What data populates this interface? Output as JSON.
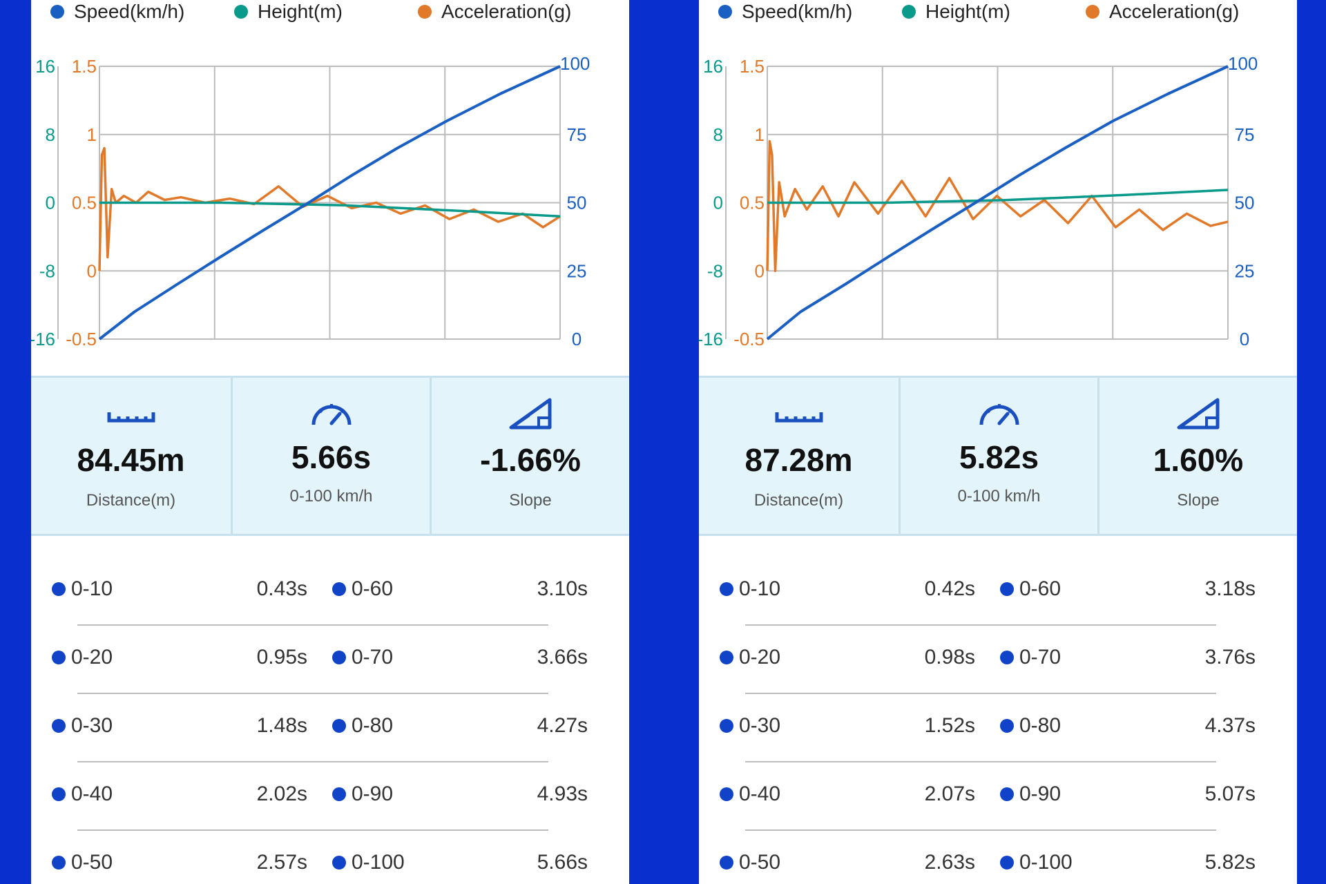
{
  "legend": {
    "speed": "Speed(km/h)",
    "height": "Height(m)",
    "accel": "Acceleration(g)"
  },
  "colors": {
    "speed": "#1a5fc2",
    "height": "#0a9a8b",
    "accel": "#e07a2a",
    "grid": "#bcbcbc",
    "background_frame": "#0a2fcf"
  },
  "icons": [
    "ruler-icon",
    "speedometer-icon",
    "slope-icon"
  ],
  "panels": [
    {
      "stats": {
        "distance": {
          "value": "84.45m",
          "label": "Distance(m)"
        },
        "time": {
          "value": "5.66s",
          "label": "0-100 km/h"
        },
        "slope": {
          "value": "-1.66%",
          "label": "Slope"
        }
      },
      "splits": [
        {
          "range": "0-10",
          "time": "0.43s"
        },
        {
          "range": "0-20",
          "time": "0.95s"
        },
        {
          "range": "0-30",
          "time": "1.48s"
        },
        {
          "range": "0-40",
          "time": "2.02s"
        },
        {
          "range": "0-50",
          "time": "2.57s"
        },
        {
          "range": "0-60",
          "time": "3.10s"
        },
        {
          "range": "0-70",
          "time": "3.66s"
        },
        {
          "range": "0-80",
          "time": "4.27s"
        },
        {
          "range": "0-90",
          "time": "4.93s"
        },
        {
          "range": "0-100",
          "time": "5.66s"
        }
      ],
      "chart_data": {
        "type": "line",
        "title": "",
        "xlabel": "",
        "ylabel": "",
        "grid": true,
        "legend_position": "top",
        "axes": {
          "height": {
            "ticks": [
              "16",
              "8",
              "0",
              "-8",
              "-16"
            ],
            "range": [
              -16,
              16
            ]
          },
          "accel": {
            "ticks": [
              "1.5",
              "1",
              "0.5",
              "0",
              "-0.5"
            ],
            "range": [
              -0.5,
              1.5
            ]
          },
          "speed": {
            "ticks": [
              "100",
              "75",
              "50",
              "25",
              "0"
            ],
            "range": [
              0,
              100
            ]
          }
        },
        "x_range": [
          0,
          5.66
        ],
        "series": [
          {
            "name": "Speed(km/h)",
            "axis": "speed",
            "x": [
              0,
              0.43,
              0.95,
              1.48,
              2.02,
              2.57,
              3.1,
              3.66,
              4.27,
              4.93,
              5.66
            ],
            "values": [
              0,
              10,
              20,
              30,
              40,
              50,
              60,
              70,
              80,
              90,
              100
            ]
          },
          {
            "name": "Height(m)",
            "axis": "height",
            "x": [
              0,
              1.5,
              3.0,
              4.5,
              5.66
            ],
            "values": [
              0,
              0,
              -0.3,
              -1.0,
              -1.6
            ]
          },
          {
            "name": "Acceleration(g)",
            "axis": "accel",
            "x": [
              0,
              0.03,
              0.06,
              0.1,
              0.15,
              0.2,
              0.3,
              0.45,
              0.6,
              0.8,
              1.0,
              1.3,
              1.6,
              1.9,
              2.2,
              2.5,
              2.8,
              3.1,
              3.4,
              3.7,
              4.0,
              4.3,
              4.6,
              4.9,
              5.2,
              5.45,
              5.66
            ],
            "values": [
              0,
              0.85,
              0.9,
              0.1,
              0.6,
              0.5,
              0.55,
              0.5,
              0.58,
              0.52,
              0.54,
              0.5,
              0.53,
              0.49,
              0.62,
              0.47,
              0.55,
              0.46,
              0.5,
              0.42,
              0.48,
              0.38,
              0.45,
              0.36,
              0.42,
              0.32,
              0.4
            ]
          }
        ]
      }
    },
    {
      "stats": {
        "distance": {
          "value": "87.28m",
          "label": "Distance(m)"
        },
        "time": {
          "value": "5.82s",
          "label": "0-100 km/h"
        },
        "slope": {
          "value": "1.60%",
          "label": "Slope"
        }
      },
      "splits": [
        {
          "range": "0-10",
          "time": "0.42s"
        },
        {
          "range": "0-20",
          "time": "0.98s"
        },
        {
          "range": "0-30",
          "time": "1.52s"
        },
        {
          "range": "0-40",
          "time": "2.07s"
        },
        {
          "range": "0-50",
          "time": "2.63s"
        },
        {
          "range": "0-60",
          "time": "3.18s"
        },
        {
          "range": "0-70",
          "time": "3.76s"
        },
        {
          "range": "0-80",
          "time": "4.37s"
        },
        {
          "range": "0-90",
          "time": "5.07s"
        },
        {
          "range": "0-100",
          "time": "5.82s"
        }
      ],
      "chart_data": {
        "type": "line",
        "title": "",
        "xlabel": "",
        "ylabel": "",
        "grid": true,
        "legend_position": "top",
        "axes": {
          "height": {
            "ticks": [
              "16",
              "8",
              "0",
              "-8",
              "-16"
            ],
            "range": [
              -16,
              16
            ]
          },
          "accel": {
            "ticks": [
              "1.5",
              "1",
              "0.5",
              "0",
              "-0.5"
            ],
            "range": [
              -0.5,
              1.5
            ]
          },
          "speed": {
            "ticks": [
              "100",
              "75",
              "50",
              "25",
              "0"
            ],
            "range": [
              0,
              100
            ]
          }
        },
        "x_range": [
          0,
          5.82
        ],
        "series": [
          {
            "name": "Speed(km/h)",
            "axis": "speed",
            "x": [
              0,
              0.42,
              0.98,
              1.52,
              2.07,
              2.63,
              3.18,
              3.76,
              4.37,
              5.07,
              5.82
            ],
            "values": [
              0,
              10,
              20,
              30,
              40,
              50,
              60,
              70,
              80,
              90,
              100
            ]
          },
          {
            "name": "Height(m)",
            "axis": "height",
            "x": [
              0,
              1.5,
              3.0,
              4.5,
              5.82
            ],
            "values": [
              0,
              0,
              0.3,
              0.9,
              1.5
            ]
          },
          {
            "name": "Acceleration(g)",
            "axis": "accel",
            "x": [
              0,
              0.03,
              0.06,
              0.1,
              0.15,
              0.22,
              0.35,
              0.5,
              0.7,
              0.9,
              1.1,
              1.4,
              1.7,
              2.0,
              2.3,
              2.6,
              2.9,
              3.2,
              3.5,
              3.8,
              4.1,
              4.4,
              4.7,
              5.0,
              5.3,
              5.6,
              5.82
            ],
            "values": [
              0,
              0.95,
              0.85,
              0.0,
              0.65,
              0.4,
              0.6,
              0.45,
              0.62,
              0.4,
              0.65,
              0.42,
              0.66,
              0.4,
              0.68,
              0.38,
              0.55,
              0.4,
              0.52,
              0.35,
              0.55,
              0.32,
              0.45,
              0.3,
              0.42,
              0.33,
              0.36
            ]
          }
        ]
      }
    }
  ]
}
